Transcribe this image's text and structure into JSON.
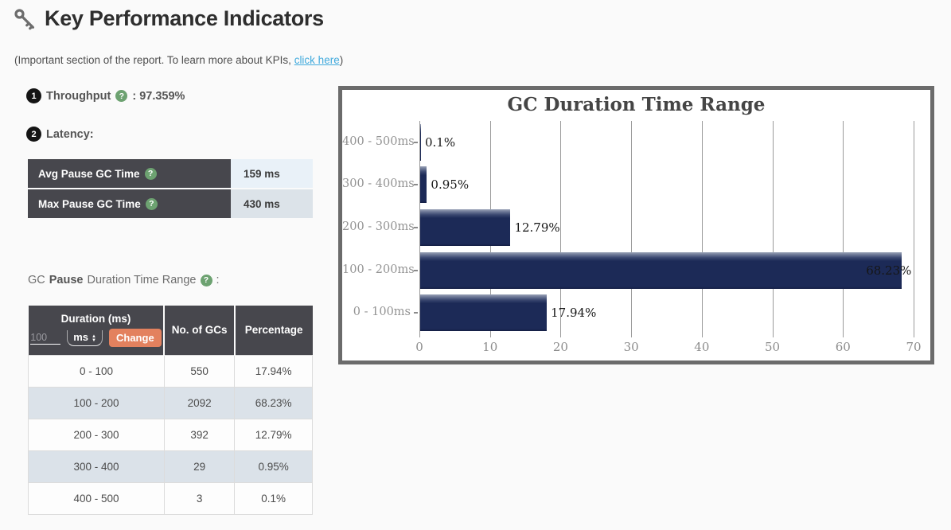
{
  "page": {
    "title": "Key Performance Indicators",
    "subtitle_prefix": "(Important section of the report. To learn more about KPIs, ",
    "subtitle_link": "click here",
    "subtitle_suffix": ")"
  },
  "icons": {
    "help_glyph": "?",
    "caret_up": "▲",
    "caret_down": "▼"
  },
  "throughput": {
    "badge": "1",
    "label": "Throughput",
    "value_text": ": 97.359%"
  },
  "latency": {
    "badge": "2",
    "label": "Latency:",
    "rows": [
      {
        "label": "Avg Pause GC Time",
        "value": "159 ms"
      },
      {
        "label": "Max Pause GC Time",
        "value": "430 ms"
      }
    ]
  },
  "gc_pause_heading": {
    "prefix": "GC",
    "bold_word": "Pause",
    "rest": "Duration Time Range",
    "colon": ":"
  },
  "duration_table": {
    "headers": {
      "duration": "Duration (ms)",
      "gcs": "No. of GCs",
      "percentage": "Percentage"
    },
    "controls": {
      "input_placeholder": "100",
      "unit_selected": "ms",
      "change_label": "Change"
    },
    "rows": [
      {
        "range": "0 - 100",
        "count": "550",
        "percentage": "17.94%"
      },
      {
        "range": "100 - 200",
        "count": "2092",
        "percentage": "68.23%"
      },
      {
        "range": "200 - 300",
        "count": "392",
        "percentage": "12.79%"
      },
      {
        "range": "300 - 400",
        "count": "29",
        "percentage": "0.95%"
      },
      {
        "range": "400 - 500",
        "count": "3",
        "percentage": "0.1%"
      }
    ]
  },
  "chart_data": {
    "type": "bar",
    "orientation": "horizontal",
    "title": "GC Duration Time Range",
    "categories": [
      "400 - 500ms",
      "300 - 400ms",
      "200 - 300ms",
      "100 - 200ms",
      "0 - 100ms"
    ],
    "values": [
      0.1,
      0.95,
      12.79,
      68.23,
      17.94
    ],
    "value_labels": [
      "0.1%",
      "0.95%",
      "12.79%",
      "68.23%",
      "17.94%"
    ],
    "xlabel": "",
    "ylabel": "",
    "xlim": [
      0,
      70
    ],
    "x_ticks": [
      0,
      10,
      20,
      30,
      40,
      50,
      60,
      70
    ],
    "bar_color": "#1c2a57",
    "grid": true,
    "legend": false
  }
}
